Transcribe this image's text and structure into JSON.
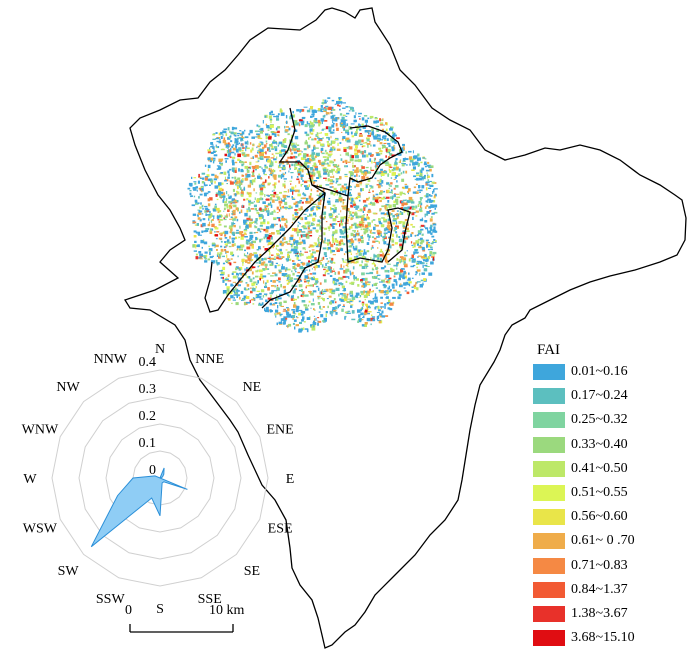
{
  "legend": {
    "title": "FAI",
    "items": [
      {
        "label": "0.01~0.16",
        "color": "#3ea6dc"
      },
      {
        "label": "0.17~0.24",
        "color": "#5cbfbf"
      },
      {
        "label": "0.25~0.32",
        "color": "#7fd4a0"
      },
      {
        "label": "0.33~0.40",
        "color": "#9bd97e"
      },
      {
        "label": "0.41~0.50",
        "color": "#bde868"
      },
      {
        "label": "0.51~0.55",
        "color": "#dcf555"
      },
      {
        "label": "0.56~0.60",
        "color": "#e9e549"
      },
      {
        "label": "0.61~ 0 .70",
        "color": "#efac4a"
      },
      {
        "label": "0.71~0.83",
        "color": "#f58944"
      },
      {
        "label": "0.84~1.37",
        "color": "#f25a33"
      },
      {
        "label": "1.38~3.67",
        "color": "#e8312a"
      },
      {
        "label": "3.68~15.10",
        "color": "#e00d12"
      }
    ]
  },
  "scale_bar": {
    "start_label": "0",
    "end_label": "10 km"
  },
  "chart_data": {
    "type": "radar",
    "directions": [
      "N",
      "NNE",
      "NE",
      "ENE",
      "E",
      "ESE",
      "SE",
      "SSE",
      "S",
      "SSW",
      "SW",
      "WSW",
      "W",
      "WNW",
      "NW",
      "NNW"
    ],
    "radial_ticks": [
      "0",
      "0.1",
      "0.2",
      "0.3",
      "0.4"
    ],
    "rmax": 0.4,
    "values": [
      0.0,
      0.04,
      0.02,
      0.01,
      0.0,
      0.11,
      0.02,
      0.02,
      0.14,
      0.08,
      0.36,
      0.17,
      0.1,
      0.02,
      0.0,
      0.0
    ],
    "fill_color": "#8fcdf5",
    "stroke_color": "#2a8fd8"
  }
}
